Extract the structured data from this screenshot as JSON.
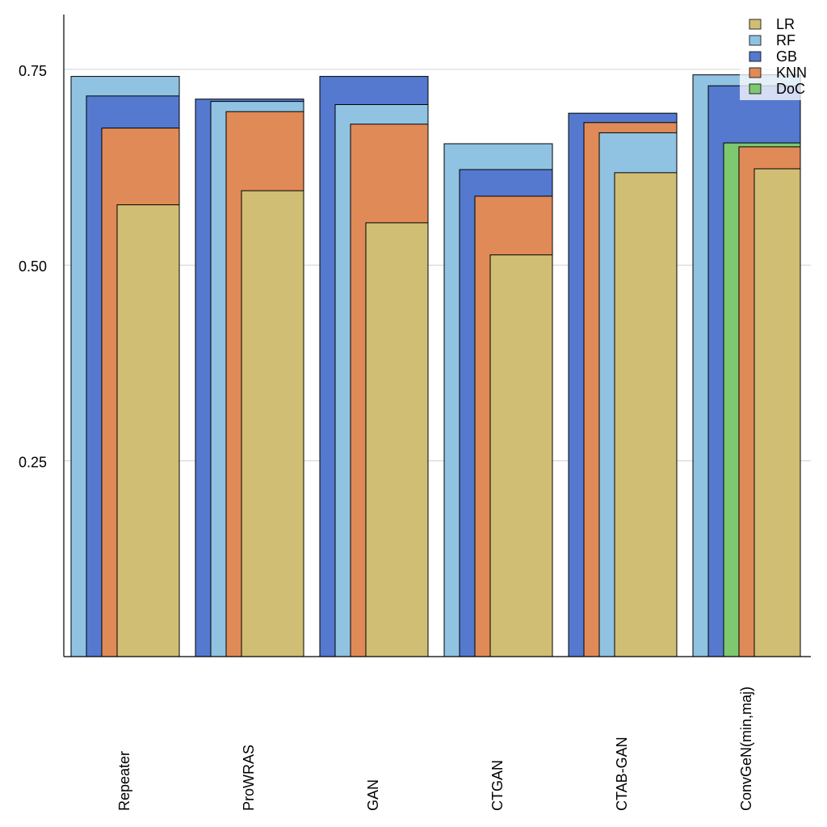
{
  "chart_data": {
    "type": "bar",
    "title": "",
    "xlabel": "",
    "ylabel": "",
    "ylim": [
      0,
      0.82
    ],
    "yticks": [
      0.25,
      0.5,
      0.75
    ],
    "ytick_labels": [
      "0.25",
      "0.50",
      "0.75"
    ],
    "grid": "horizontal",
    "legend_position": "top-right",
    "categories": [
      "Repeater",
      "ProWRAS",
      "GAN",
      "CTGAN",
      "CTAB-GAN",
      "ConvGeN(min,maj)"
    ],
    "series": [
      {
        "name": "LR",
        "color": "#d1be75",
        "values": [
          0.577,
          0.595,
          0.554,
          0.513,
          0.618,
          0.623
        ]
      },
      {
        "name": "RF",
        "color": "#90c3e1",
        "values": [
          0.741,
          0.709,
          0.705,
          0.655,
          0.669,
          0.743
        ]
      },
      {
        "name": "GB",
        "color": "#5479cf",
        "values": [
          0.716,
          0.712,
          0.741,
          0.622,
          0.694,
          0.729
        ]
      },
      {
        "name": "KNN",
        "color": "#e08a58",
        "values": [
          0.675,
          0.696,
          0.68,
          0.588,
          0.682,
          0.651
        ]
      },
      {
        "name": "DoC",
        "color": "#7ec86f",
        "values": [
          null,
          null,
          null,
          null,
          null,
          0.656
        ]
      }
    ]
  }
}
